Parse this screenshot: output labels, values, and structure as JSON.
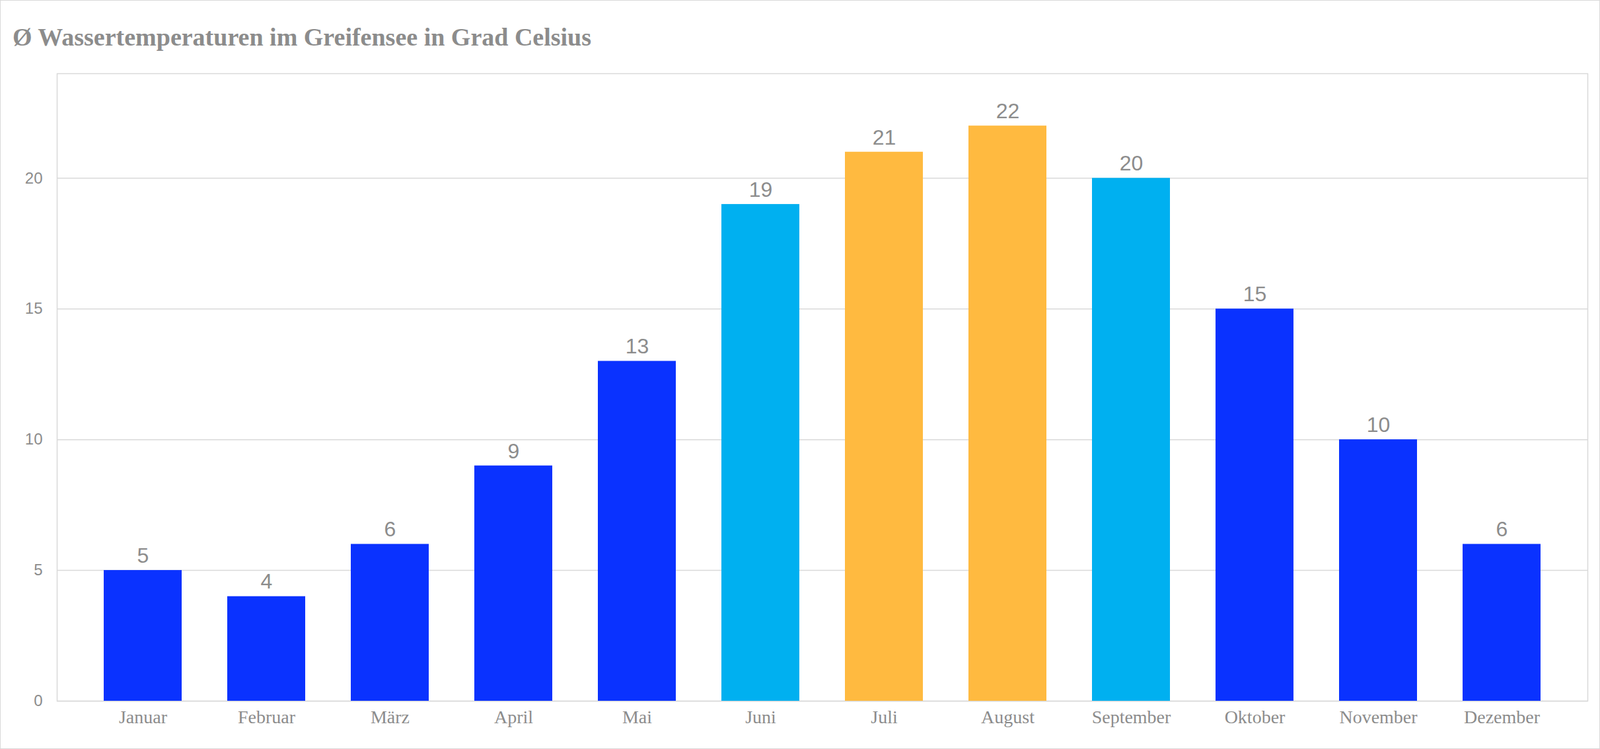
{
  "chart_data": {
    "type": "bar",
    "title": "Ø Wassertemperaturen im Greifensee in Grad Celsius",
    "categories": [
      "Januar",
      "Februar",
      "März",
      "April",
      "Mai",
      "Juni",
      "Juli",
      "August",
      "September",
      "Oktober",
      "November",
      "Dezember"
    ],
    "values": [
      5,
      4,
      6,
      9,
      13,
      19,
      21,
      22,
      20,
      15,
      10,
      6
    ],
    "colors": [
      "#0A32FF",
      "#0A32FF",
      "#0A32FF",
      "#0A32FF",
      "#0A32FF",
      "#00B0F0",
      "#FFBA40",
      "#FFBA40",
      "#00B0F0",
      "#0A32FF",
      "#0A32FF",
      "#0A32FF"
    ],
    "ylim": [
      0,
      24
    ],
    "yticks": [
      0,
      5,
      10,
      15,
      20
    ],
    "grid": true,
    "data_labels": true
  }
}
